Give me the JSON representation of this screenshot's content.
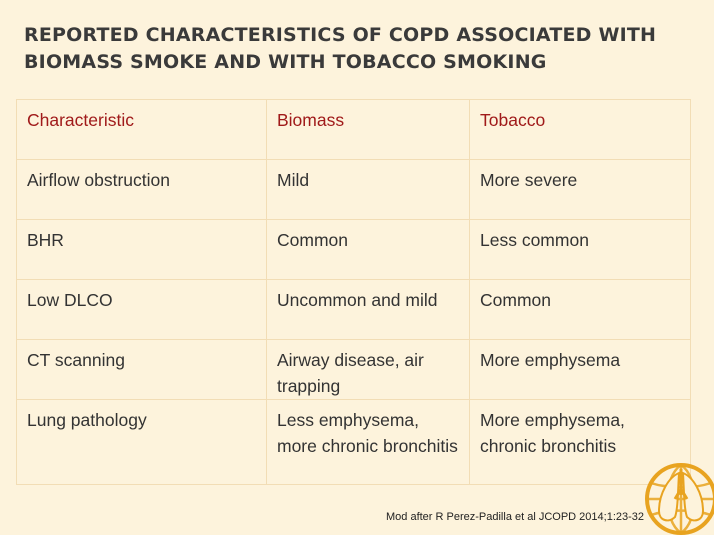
{
  "slide": {
    "title_line1": "REPORTED CHARACTERISTICS OF COPD ASSOCIATED WITH",
    "title_line2": "BIOMASS SMOKE AND WITH TOBACCO SMOKING"
  },
  "table": {
    "headers": [
      "Characteristic",
      "Biomass",
      "Tobacco"
    ],
    "rows": [
      [
        "Airflow obstruction",
        "Mild",
        "More severe"
      ],
      [
        "BHR",
        "Common",
        "Less common"
      ],
      [
        "Low DLCO",
        "Uncommon and mild",
        "Common"
      ],
      [
        "CT scanning",
        "Airway disease, air trapping",
        "More emphysema"
      ],
      [
        "Lung pathology",
        "Less emphysema, more chronic bronchitis",
        "More emphysema, chronic bronchitis"
      ]
    ]
  },
  "caption": "Mod after R Perez-Padilla et al JCOPD 2014;1:23-32",
  "logo": {
    "icon": "lungs-globe-logo-icon",
    "color": "#e8a320"
  },
  "colors": {
    "background": "#fdf3dc",
    "header_text": "#a01a1a",
    "border": "#f2ddb5"
  }
}
